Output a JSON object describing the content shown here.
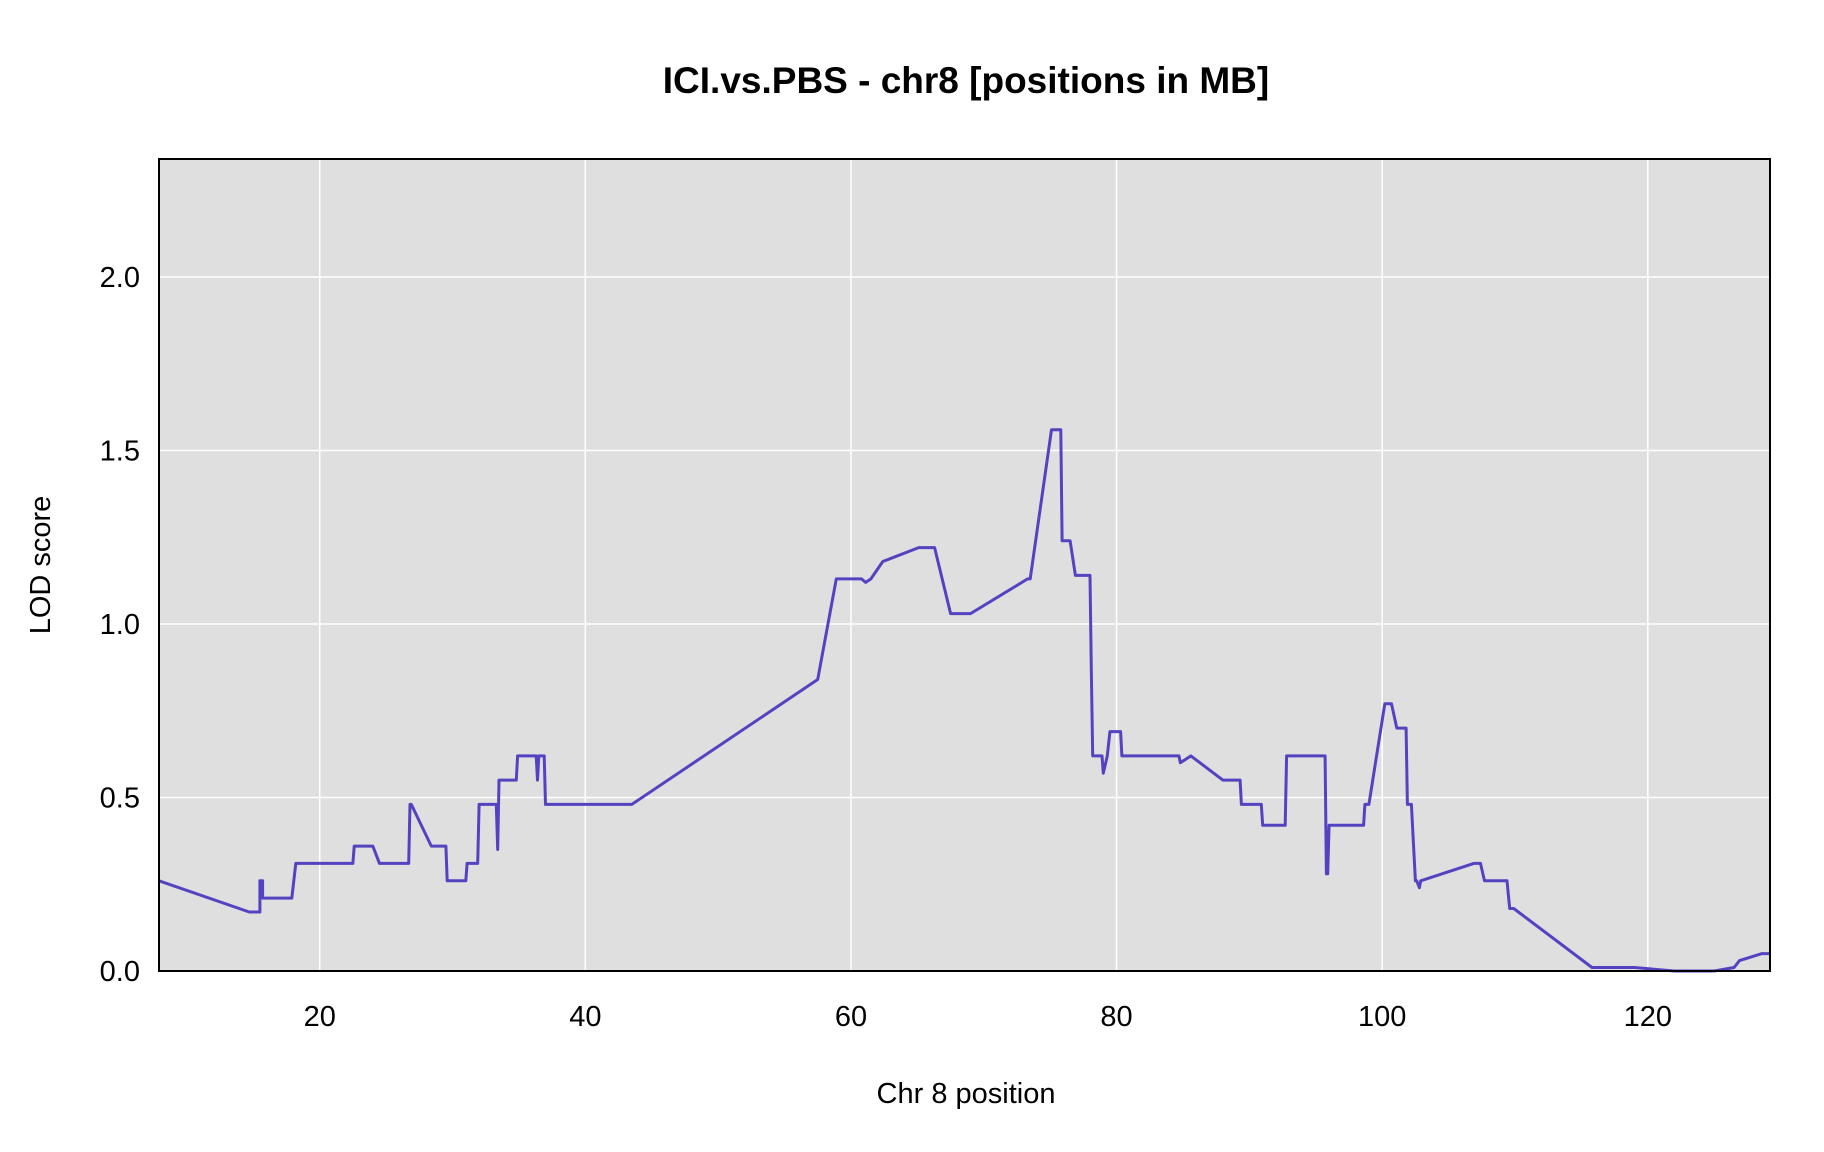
{
  "chart_data": {
    "type": "line",
    "title": "ICI.vs.PBS - chr8 [positions in MB]",
    "xlabel": "Chr 8 position",
    "ylabel": "LOD score",
    "xlim": [
      7.9,
      129.2
    ],
    "ylim": [
      0,
      2.34
    ],
    "x_ticks": [
      20,
      40,
      60,
      80,
      100,
      120
    ],
    "x_tick_labels": [
      "20",
      "40",
      "60",
      "80",
      "100",
      "120"
    ],
    "y_ticks": [
      0,
      0.5,
      1,
      1.5,
      2
    ],
    "y_tick_labels": [
      "0.0",
      "0.5",
      "1.0",
      "1.5",
      "2.0"
    ],
    "grid": true,
    "background": "#dfdfdf",
    "grid_color": "#ffffff",
    "line_color": "#5443c0",
    "series": [
      {
        "x": [
          7.9,
          14.7,
          15.5,
          15.5,
          15.7,
          15.7,
          17.9,
          18.2,
          22.5,
          22.6,
          24,
          24.5,
          26.7,
          26.8,
          26.9,
          28.4,
          29.5,
          29.6,
          31,
          31.1,
          31.9,
          32,
          33.3,
          33.4,
          33.5,
          34.8,
          34.9,
          36.3,
          36.4,
          36.5,
          36.9,
          37,
          43.5,
          57.5,
          58.9,
          60.8,
          61.1,
          61.5,
          62.4,
          65.1,
          65.4,
          65.8,
          66.3,
          67.5,
          69,
          73.3,
          73.5,
          75.1,
          75.8,
          75.9,
          76.5,
          76.9,
          78,
          78.1,
          78.2,
          78.3,
          78.9,
          79,
          79.3,
          79.5,
          80.3,
          80.4,
          84.7,
          84.8,
          85.6,
          88,
          89.3,
          89.4,
          90.9,
          91,
          92.7,
          92.8,
          95.7,
          95.8,
          95.9,
          96,
          98.6,
          98.7,
          99,
          100.2,
          100.7,
          101.1,
          101.8,
          101.9,
          102.2,
          102.5,
          102.6,
          102.8,
          102.9,
          106.9,
          107.4,
          107.7,
          109.4,
          109.6,
          109.9,
          115.8,
          119,
          122,
          125,
          126.5,
          126.9,
          128.6,
          129.2
        ],
        "y": [
          0.26,
          0.17,
          0.17,
          0.26,
          0.26,
          0.21,
          0.21,
          0.31,
          0.31,
          0.36,
          0.36,
          0.31,
          0.31,
          0.48,
          0.48,
          0.36,
          0.36,
          0.26,
          0.26,
          0.31,
          0.31,
          0.48,
          0.48,
          0.35,
          0.55,
          0.55,
          0.62,
          0.62,
          0.55,
          0.62,
          0.62,
          0.48,
          0.48,
          0.84,
          1.13,
          1.13,
          1.12,
          1.13,
          1.18,
          1.22,
          1.22,
          1.22,
          1.22,
          1.03,
          1.03,
          1.13,
          1.13,
          1.56,
          1.56,
          1.24,
          1.24,
          1.14,
          1.14,
          0.87,
          0.62,
          0.62,
          0.62,
          0.57,
          0.62,
          0.69,
          0.69,
          0.62,
          0.62,
          0.6,
          0.62,
          0.55,
          0.55,
          0.48,
          0.48,
          0.42,
          0.42,
          0.62,
          0.62,
          0.28,
          0.28,
          0.42,
          0.42,
          0.48,
          0.48,
          0.77,
          0.77,
          0.7,
          0.7,
          0.48,
          0.48,
          0.26,
          0.26,
          0.24,
          0.26,
          0.31,
          0.31,
          0.26,
          0.26,
          0.18,
          0.18,
          0.01,
          0.01,
          0.0,
          0.0,
          0.01,
          0.03,
          0.05,
          0.05
        ]
      }
    ]
  }
}
